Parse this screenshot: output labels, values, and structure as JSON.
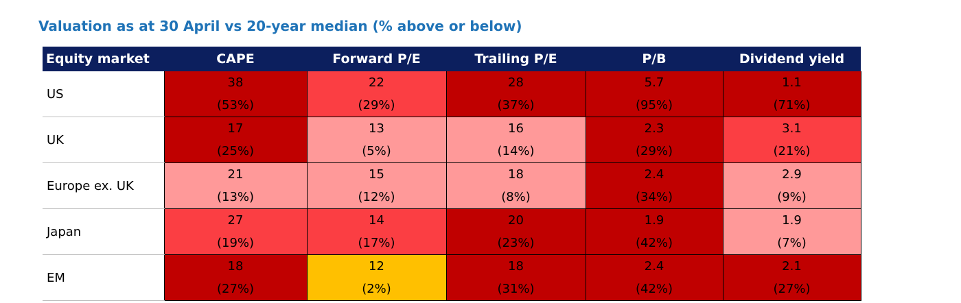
{
  "title": "Valuation as at 30 April vs 20-year median (% above or below)",
  "colors": {
    "title": "#1f73b7",
    "header_bg": "#0c1f5e",
    "dark_red": "#c00000",
    "red": "#fb3e43",
    "light_red": "#ff9999",
    "amber": "#ffc000"
  },
  "chart_data": {
    "type": "table",
    "columns": [
      "Equity market",
      "CAPE",
      "Forward P/E",
      "Trailing P/E",
      "P/B",
      "Dividend yield"
    ],
    "rows": [
      {
        "market": "US",
        "cells": [
          {
            "value": "38",
            "pct": "(53%)",
            "color": "#c00000"
          },
          {
            "value": "22",
            "pct": "(29%)",
            "color": "#fb3e43"
          },
          {
            "value": "28",
            "pct": "(37%)",
            "color": "#c00000"
          },
          {
            "value": "5.7",
            "pct": "(95%)",
            "color": "#c00000"
          },
          {
            "value": "1.1",
            "pct": "(71%)",
            "color": "#c00000"
          }
        ]
      },
      {
        "market": "UK",
        "cells": [
          {
            "value": "17",
            "pct": "(25%)",
            "color": "#c00000"
          },
          {
            "value": "13",
            "pct": "(5%)",
            "color": "#ff9999"
          },
          {
            "value": "16",
            "pct": "(14%)",
            "color": "#ff9999"
          },
          {
            "value": "2.3",
            "pct": "(29%)",
            "color": "#c00000"
          },
          {
            "value": "3.1",
            "pct": "(21%)",
            "color": "#fb3e43"
          }
        ]
      },
      {
        "market": "Europe ex. UK",
        "cells": [
          {
            "value": "21",
            "pct": "(13%)",
            "color": "#ff9999"
          },
          {
            "value": "15",
            "pct": "(12%)",
            "color": "#ff9999"
          },
          {
            "value": "18",
            "pct": "(8%)",
            "color": "#ff9999"
          },
          {
            "value": "2.4",
            "pct": "(34%)",
            "color": "#c00000"
          },
          {
            "value": "2.9",
            "pct": "(9%)",
            "color": "#ff9999"
          }
        ]
      },
      {
        "market": "Japan",
        "cells": [
          {
            "value": "27",
            "pct": "(19%)",
            "color": "#fb3e43"
          },
          {
            "value": "14",
            "pct": "(17%)",
            "color": "#fb3e43"
          },
          {
            "value": "20",
            "pct": "(23%)",
            "color": "#c00000"
          },
          {
            "value": "1.9",
            "pct": "(42%)",
            "color": "#c00000"
          },
          {
            "value": "1.9",
            "pct": "(7%)",
            "color": "#ff9999"
          }
        ]
      },
      {
        "market": "EM",
        "cells": [
          {
            "value": "18",
            "pct": "(27%)",
            "color": "#c00000"
          },
          {
            "value": "12",
            "pct": "(2%)",
            "color": "#ffc000"
          },
          {
            "value": "18",
            "pct": "(31%)",
            "color": "#c00000"
          },
          {
            "value": "2.4",
            "pct": "(42%)",
            "color": "#c00000"
          },
          {
            "value": "2.1",
            "pct": "(27%)",
            "color": "#c00000"
          }
        ]
      }
    ]
  }
}
